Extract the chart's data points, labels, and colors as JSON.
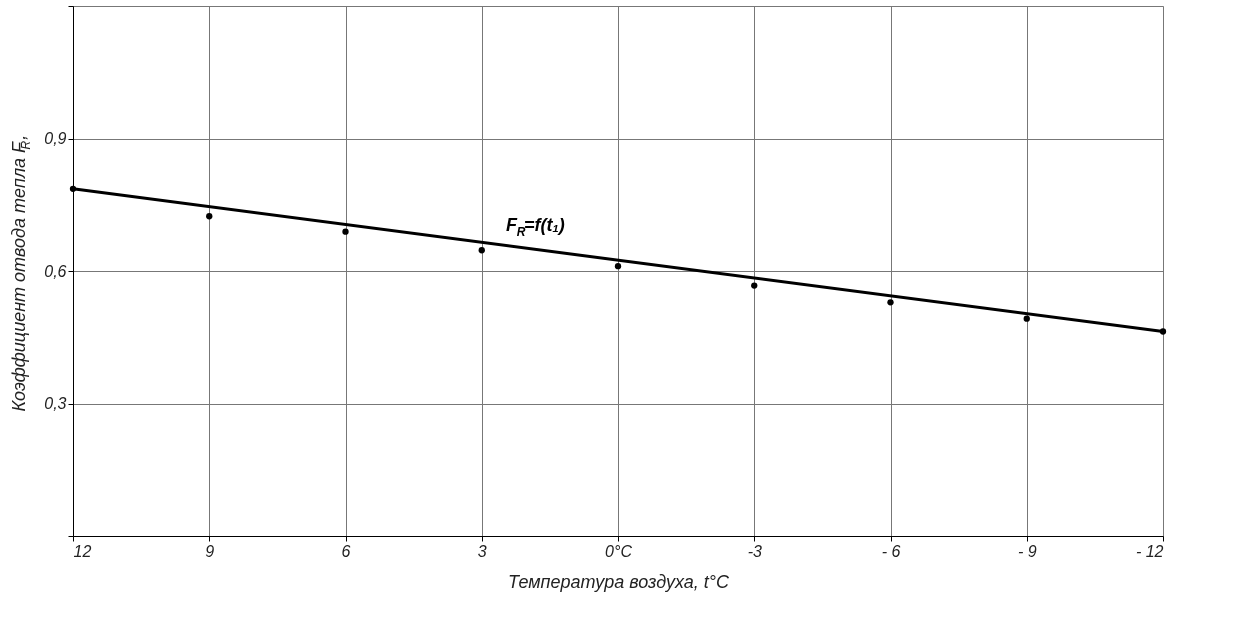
{
  "chart_data": {
    "type": "scatter",
    "xlabel": "Температура воздуха,   t°C",
    "ylabel": "Коэффициент отвода тепла   F$_{R}$,",
    "xlim": [
      12,
      -12
    ],
    "xticks": [
      12,
      9,
      6,
      3,
      {
        "value": 0,
        "label": "0°C"
      },
      -3,
      {
        "value": -6,
        "label": "- 6"
      },
      {
        "value": -9,
        "label": "- 9"
      },
      {
        "value": -12,
        "label": "- 12"
      }
    ],
    "ylim": [
      0,
      1.2
    ],
    "yticks": [
      {
        "value": 0,
        "label": null
      },
      {
        "value": 0.3,
        "label": "0,3"
      },
      {
        "value": 0.6,
        "label": "0,6"
      },
      {
        "value": 0.9,
        "label": "0,9"
      },
      {
        "value": 1.2,
        "label": null
      }
    ],
    "grid": true,
    "marker": "circle",
    "series": [
      {
        "color": "#000000",
        "x": [
          12,
          9,
          6,
          3,
          0,
          -3,
          -6,
          -9,
          -12
        ],
        "values": [
          0.786,
          0.724,
          0.689,
          0.647,
          0.611,
          0.567,
          0.529,
          0.492,
          0.463
        ]
      },
      {
        "type": "line",
        "color": "#000000",
        "x": [
          12,
          -12
        ],
        "values": [
          0.786,
          0.463
        ],
        "line_style": "solid",
        "marker": "none"
      }
    ],
    "annotations": [
      {
        "text": "F$_{R}$=f(t₁)",
        "x": 2.6,
        "y": 0.66
      }
    ]
  }
}
